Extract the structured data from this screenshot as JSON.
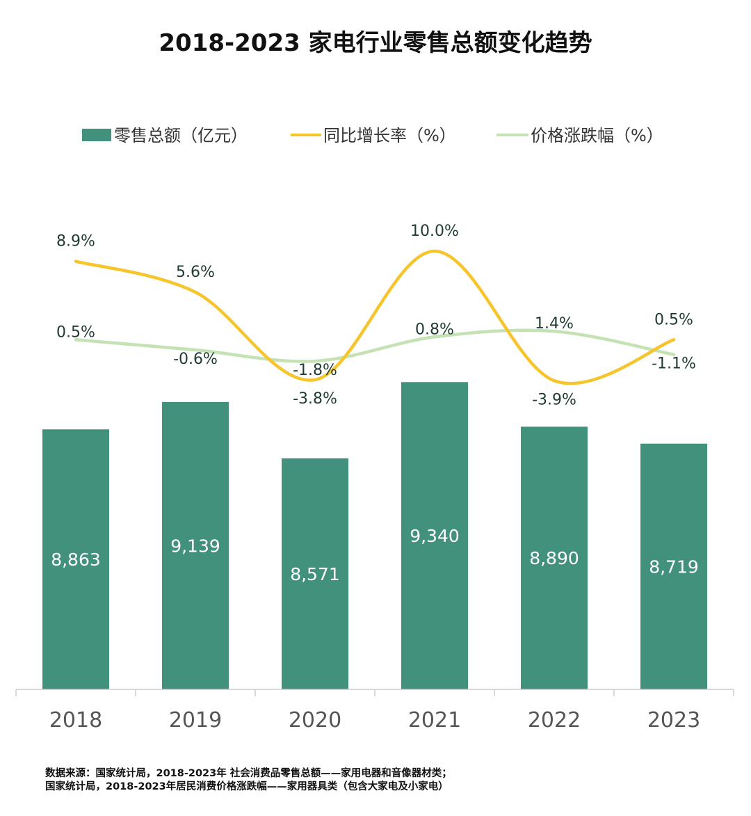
{
  "chart_data": {
    "type": "bar",
    "title": "2018-2023 家电行业零售总额变化趋势",
    "categories": [
      "2018",
      "2019",
      "2020",
      "2021",
      "2022",
      "2023"
    ],
    "series": [
      {
        "name": "零售总额（亿元）",
        "type": "bar",
        "color": "#41917d",
        "values": [
          8863,
          9139,
          8571,
          9340,
          8890,
          8719
        ],
        "labels": [
          "8,863",
          "9,139",
          "8,571",
          "9,340",
          "8,890",
          "8,719"
        ]
      },
      {
        "name": "同比增长率（%）",
        "type": "line",
        "color": "#f5c52b",
        "values": [
          8.9,
          5.6,
          -3.8,
          10.0,
          -3.9,
          0.5
        ],
        "labels": [
          "8.9%",
          "5.6%",
          "-3.8%",
          "10.0%",
          "-3.9%",
          "0.5%"
        ]
      },
      {
        "name": "价格涨跌幅（%）",
        "type": "line",
        "color": "#c5e2b4",
        "values": [
          0.5,
          -0.6,
          -1.8,
          0.8,
          1.4,
          -1.1
        ],
        "labels": [
          "0.5%",
          "-0.6%",
          "-1.8%",
          "0.8%",
          "1.4%",
          "-1.1%"
        ]
      }
    ],
    "legend_position": "top-center",
    "grid": false
  },
  "source_lines": [
    "数据来源：国家统计局，2018-2023年 社会消费品零售总额——家用电器和音像器材类；",
    "国家统计局，2018-2023年居民消费价格涨跌幅——家用器具类（包含大家电及小家电）"
  ]
}
